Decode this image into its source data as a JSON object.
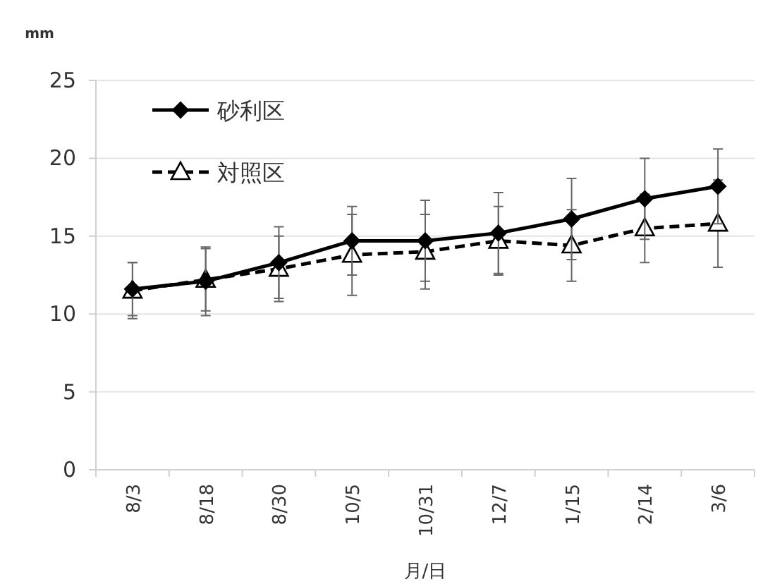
{
  "chart_data": {
    "type": "line",
    "xlabel": "月/日",
    "ylabel": "mm",
    "categories": [
      "8/3",
      "8/18",
      "8/30",
      "10/5",
      "10/31",
      "12/7",
      "1/15",
      "2/14",
      "3/6"
    ],
    "ylim": [
      0,
      25
    ],
    "yticks": [
      0,
      5,
      10,
      15,
      20,
      25
    ],
    "grid": "y",
    "legend": "top left",
    "series": [
      {
        "name": "砂利区",
        "color": "#000000",
        "marker": "diamond",
        "line_style": "solid",
        "values": [
          11.6,
          12.1,
          13.3,
          14.7,
          14.7,
          15.2,
          16.1,
          17.4,
          18.2
        ],
        "errors": [
          1.7,
          2.2,
          2.3,
          2.2,
          2.6,
          2.6,
          2.6,
          2.6,
          2.4
        ]
      },
      {
        "name": "対照区",
        "color": "#000000",
        "marker": "triangle",
        "line_style": "dashed",
        "values": [
          11.5,
          12.2,
          12.9,
          13.8,
          14.0,
          14.7,
          14.4,
          15.5,
          15.8
        ],
        "errors": [
          1.8,
          2.0,
          2.1,
          2.6,
          2.4,
          2.2,
          2.3,
          2.2,
          2.8
        ]
      }
    ]
  }
}
